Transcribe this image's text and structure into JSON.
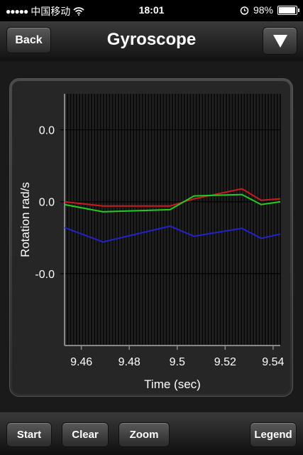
{
  "status_bar": {
    "signal": "●●●●●",
    "carrier": "中国移动",
    "wifi_icon": "wifi-icon",
    "time": "18:01",
    "alarm_icon": "alarm-icon",
    "battery_pct": "98%",
    "battery_level": 0.98
  },
  "nav": {
    "back_label": "Back",
    "title": "Gyroscope",
    "menu_icon": "triangle-down-icon"
  },
  "toolbar": {
    "start_label": "Start",
    "clear_label": "Clear",
    "zoom_label": "Zoom",
    "legend_label": "Legend"
  },
  "chart_data": {
    "type": "line",
    "xlabel": "Time (sec)",
    "ylabel": "Rotation rad/s",
    "x_ticks": [
      "9.46",
      "9.48",
      "9.5",
      "9.52",
      "9.54"
    ],
    "x_tick_values": [
      9.46,
      9.48,
      9.5,
      9.52,
      9.54
    ],
    "y_ticks": [
      "0.0",
      "0.0",
      "-0.0"
    ],
    "y_tick_values": [
      0.01,
      0.0,
      -0.01
    ],
    "xlim": [
      9.453,
      9.543
    ],
    "ylim": [
      -0.02,
      0.015
    ],
    "grid": true,
    "series": [
      {
        "color": "#cc1b1b",
        "x": [
          9.453,
          9.469,
          9.497,
          9.507,
          9.527,
          9.535,
          9.543
        ],
        "y": [
          0.0,
          -0.0006,
          -0.0006,
          0.0004,
          0.0018,
          0.0002,
          0.0004
        ]
      },
      {
        "color": "#22cc22",
        "x": [
          9.453,
          9.469,
          9.497,
          9.507,
          9.527,
          9.535,
          9.543
        ],
        "y": [
          -0.0004,
          -0.0014,
          -0.0011,
          0.0008,
          0.001,
          -0.0004,
          0.0
        ]
      },
      {
        "color": "#2222cc",
        "x": [
          9.453,
          9.469,
          9.497,
          9.507,
          9.527,
          9.535,
          9.543
        ],
        "y": [
          -0.0036,
          -0.0056,
          -0.0034,
          -0.0048,
          -0.0037,
          -0.0051,
          -0.0045
        ]
      }
    ]
  }
}
